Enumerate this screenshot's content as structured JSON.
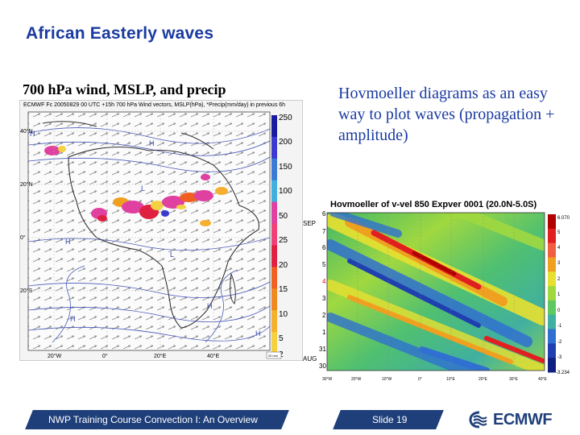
{
  "title": "African Easterly waves",
  "left_caption": "700 hPa wind, MSLP, and precip",
  "right_text": "Hovmoeller diagrams as an easy way to plot waves (propagation + amplitude)",
  "map": {
    "header": "ECMWF Fc 20050829 00 UTC +15h 700 hPa Wind vectors, MSLP(hPa), *Precip(mm/day) in previous 6h",
    "colorbar_labels": [
      "250",
      "200",
      "150",
      "100",
      "50",
      "25",
      "20",
      "15",
      "10",
      "5",
      "2"
    ],
    "colorbar_colors": [
      "#1a1aa0",
      "#3a3ad0",
      "#3b7bd8",
      "#40b0e0",
      "#e040a0",
      "#f04078",
      "#e02040",
      "#f06020",
      "#f08a20",
      "#f5b030",
      "#f5d040"
    ],
    "lat_labels": [
      "40°N",
      "20°N",
      "0°",
      "20°S"
    ],
    "lon_labels": [
      "20°W",
      "0°",
      "20°E",
      "40°E"
    ],
    "pressure_labels": [
      "H",
      "H",
      "H",
      "L",
      "H",
      "H",
      "H",
      "L"
    ],
    "scale_label": "20 m/s"
  },
  "hov": {
    "title": "Hovmoeller of  v-vel 850 Expver 0001 (20.0N-5.0S)",
    "month_labels": [
      "SEP",
      "AUG"
    ],
    "day_labels": [
      "6",
      "7",
      "6",
      "5",
      "4",
      "3",
      "2",
      "1",
      "31",
      "30"
    ],
    "highlight_color": "#e01010",
    "lon_labels": [
      "30°W",
      "20°W",
      "10°W",
      "0°",
      "10°E",
      "20°E",
      "30°E",
      "40°E"
    ],
    "colorbar_labels": [
      "6.070",
      "5",
      "4",
      "3",
      "2",
      "1",
      "0",
      "-1",
      "-2",
      "-3",
      "-3.234"
    ],
    "colorbar_colors": [
      "#b00000",
      "#e02020",
      "#f06040",
      "#f0a020",
      "#e8e030",
      "#a0d840",
      "#60c860",
      "#40b0a0",
      "#3070d0",
      "#2040b0",
      "#102080"
    ]
  },
  "footer": {
    "course": "NWP Training Course Convection I: An Overview",
    "slide": "Slide 19",
    "logo_text": "ECMWF"
  }
}
